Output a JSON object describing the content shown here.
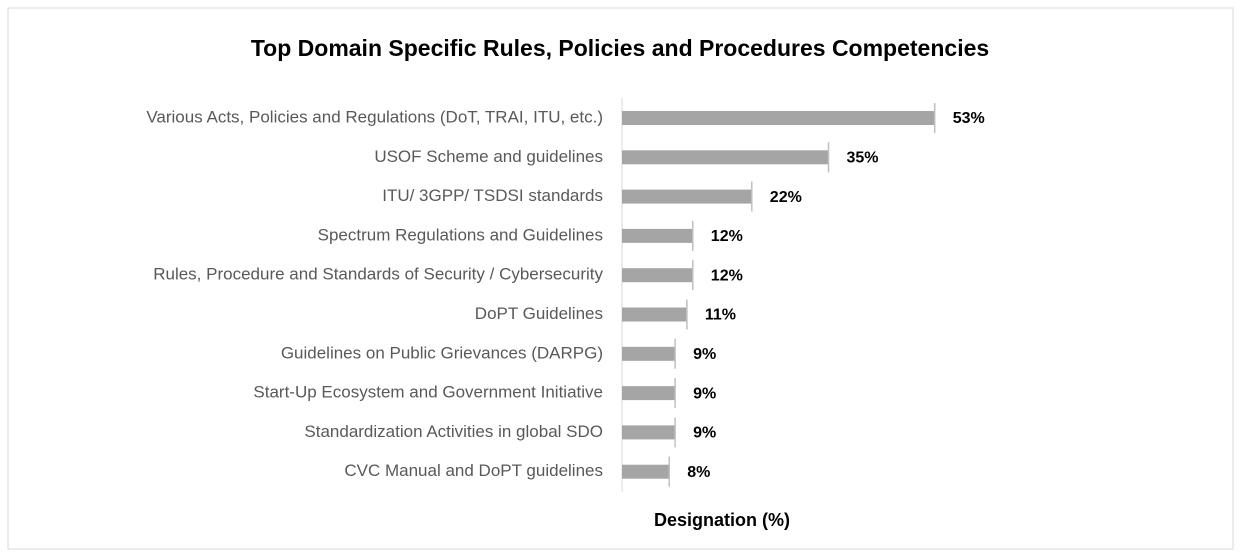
{
  "chart_data": {
    "type": "bar",
    "orientation": "horizontal",
    "title": "Top Domain Specific Rules, Policies and Procedures Competencies",
    "x_label": "Designation (%)",
    "categories": [
      "Various Acts, Policies and Regulations (DoT, TRAI, ITU, etc.)",
      "USOF Scheme and guidelines",
      "ITU/ 3GPP/ TSDSI standards",
      "Spectrum Regulations and Guidelines",
      "Rules, Procedure and Standards of Security / Cybersecurity",
      "DoPT Guidelines",
      "Guidelines on Public Grievances (DARPG)",
      "Start-Up Ecosystem and Government Initiative",
      "Standardization Activities in global SDO",
      "CVC Manual and DoPT guidelines"
    ],
    "values": [
      53,
      35,
      22,
      12,
      12,
      11,
      9,
      9,
      9,
      8
    ],
    "value_labels": [
      "53%",
      "35%",
      "22%",
      "12%",
      "12%",
      "11%",
      "9%",
      "9%",
      "9%",
      "8%"
    ],
    "color": "#a5a5a5",
    "xlim": [
      0,
      100
    ]
  }
}
